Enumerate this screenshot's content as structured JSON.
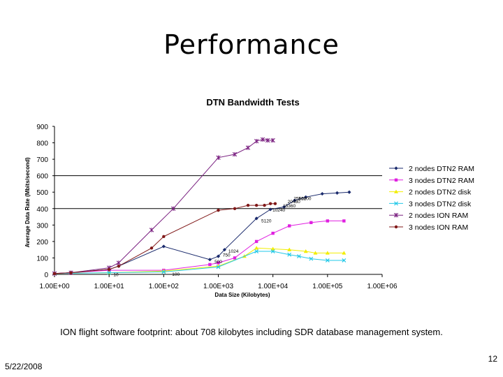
{
  "slide": {
    "title": "Performance",
    "caption": "ION flight software footprint: about 708 kilobytes including SDR database management system.",
    "date": "5/22/2008",
    "page_number": "12"
  },
  "chart_data": {
    "type": "line",
    "title": "DTN Bandwidth Tests",
    "xlabel": "Data Size (Kilobytes)",
    "ylabel": "Average Data Rate (Mbits/second)",
    "x_scale": "log",
    "xlim": [
      1,
      1000000
    ],
    "ylim": [
      0,
      900
    ],
    "x_ticks": [
      1,
      10,
      100,
      1000,
      10000,
      100000,
      1000000
    ],
    "x_tick_labels": [
      "1.00E+00",
      "1.00E+01",
      "1.00E+02",
      "1.00E+03",
      "1.00E+04",
      "1.00E+05",
      "1.00E+06"
    ],
    "y_ticks": [
      0,
      100,
      200,
      300,
      400,
      500,
      600,
      700,
      800,
      900
    ],
    "y_tick_labels": [
      "0",
      "100",
      "200",
      "300",
      "400",
      "500",
      "600",
      "700",
      "800",
      "900"
    ],
    "gridlines_y": [
      400,
      600
    ],
    "legend_position": "right",
    "series": [
      {
        "name": "2 nodes DTN2 RAM",
        "color": "#1a2a6c",
        "marker": "diamond",
        "x": [
          1,
          2,
          10,
          15,
          100,
          700,
          1000,
          1300,
          5000,
          9000,
          16000,
          25000,
          40000,
          80000,
          150000,
          250000
        ],
        "y": [
          5,
          10,
          30,
          50,
          170,
          90,
          110,
          150,
          340,
          395,
          410,
          450,
          470,
          490,
          495,
          500
        ]
      },
      {
        "name": "3 nodes DTN2 RAM",
        "color": "#e020e0",
        "marker": "square",
        "x": [
          1,
          2,
          10,
          100,
          700,
          1000,
          2000,
          5000,
          10000,
          20000,
          50000,
          100000,
          200000
        ],
        "y": [
          5,
          10,
          25,
          25,
          60,
          70,
          100,
          200,
          250,
          295,
          315,
          325,
          325
        ]
      },
      {
        "name": "2 nodes DTN2 disk",
        "color": "#f2ee00",
        "marker": "triangle",
        "x": [
          1,
          10,
          100,
          1000,
          3000,
          5000,
          10000,
          20000,
          40000,
          60000,
          100000,
          200000
        ],
        "y": [
          5,
          10,
          20,
          50,
          110,
          160,
          155,
          150,
          140,
          130,
          130,
          130
        ]
      },
      {
        "name": "3 nodes DTN2 disk",
        "color": "#22c8e8",
        "marker": "x",
        "x": [
          1,
          10,
          100,
          1000,
          5000,
          10000,
          20000,
          30000,
          50000,
          100000,
          200000
        ],
        "y": [
          5,
          10,
          15,
          45,
          140,
          140,
          120,
          110,
          95,
          85,
          85
        ]
      },
      {
        "name": "2 nodes ION RAM",
        "color": "#7a2080",
        "marker": "star",
        "x": [
          1,
          2,
          10,
          15,
          60,
          150,
          1000,
          2000,
          3500,
          5000,
          6500,
          8000,
          10000
        ],
        "y": [
          5,
          10,
          40,
          70,
          270,
          400,
          710,
          730,
          770,
          810,
          820,
          815,
          815
        ]
      },
      {
        "name": "3 nodes ION RAM",
        "color": "#801818",
        "marker": "circle",
        "x": [
          1,
          2,
          10,
          15,
          60,
          100,
          1000,
          2000,
          3500,
          5000,
          7000,
          9000,
          11000
        ],
        "y": [
          5,
          10,
          30,
          50,
          160,
          230,
          390,
          400,
          420,
          420,
          420,
          430,
          430
        ]
      }
    ],
    "annotations": [
      {
        "text": "5120",
        "x": 5600,
        "y": 330
      },
      {
        "text": "10240",
        "x": 9000,
        "y": 395
      },
      {
        "text": "15360",
        "x": 14000,
        "y": 420
      },
      {
        "text": "20480",
        "x": 17000,
        "y": 445
      },
      {
        "text": "25600",
        "x": 22000,
        "y": 465
      },
      {
        "text": "51200",
        "x": 27000,
        "y": 465
      },
      {
        "text": "1024",
        "x": 1400,
        "y": 145
      },
      {
        "text": "750",
        "x": 1100,
        "y": 120
      },
      {
        "text": "500",
        "x": 780,
        "y": 80
      },
      {
        "text": "100",
        "x": 130,
        "y": 5
      },
      {
        "text": "10",
        "x": 11,
        "y": 3
      }
    ]
  }
}
